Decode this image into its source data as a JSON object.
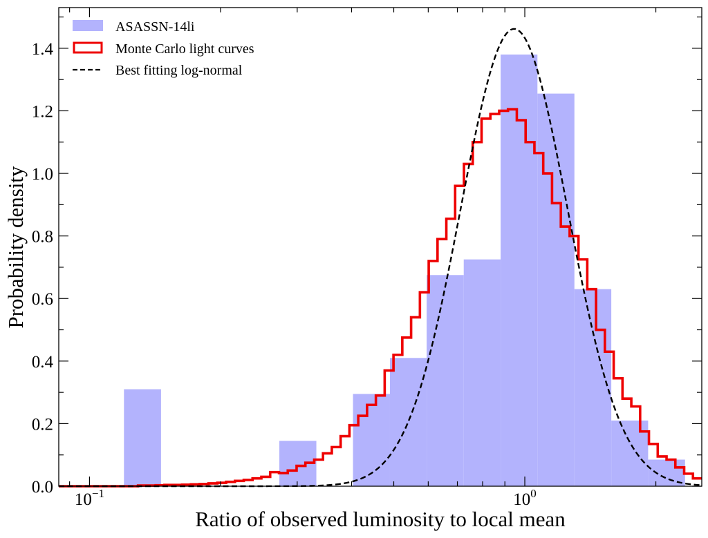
{
  "chart_data": {
    "type": "histogram",
    "xscale": "log",
    "xlim": [
      0.085,
      2.55
    ],
    "ylim": [
      0,
      1.53
    ],
    "xlabel": "Ratio of observed luminosity to local mean",
    "ylabel": "Probability density",
    "x_major_ticks": [
      {
        "value": 0.1,
        "label": "10",
        "exp": "−1"
      },
      {
        "value": 1.0,
        "label": "10",
        "exp": "0"
      }
    ],
    "y_ticks": [
      {
        "value": 0.0,
        "label": "0.0"
      },
      {
        "value": 0.2,
        "label": "0.2"
      },
      {
        "value": 0.4,
        "label": "0.4"
      },
      {
        "value": 0.6,
        "label": "0.6"
      },
      {
        "value": 0.8,
        "label": "0.8"
      },
      {
        "value": 1.0,
        "label": "1.0"
      },
      {
        "value": 1.2,
        "label": "1.2"
      },
      {
        "value": 1.4,
        "label": "1.4"
      }
    ],
    "colors": {
      "hist": "#b3b3fd",
      "mc": "#ee0000",
      "fit": "#000000",
      "axes": "#000000"
    },
    "legend": {
      "position": "upper-left",
      "entries": [
        {
          "name": "hist",
          "label": "ASASSN-14li"
        },
        {
          "name": "mc",
          "label": "Monte Carlo light curves"
        },
        {
          "name": "fit",
          "label": "Best fitting log-normal"
        }
      ]
    },
    "series": [
      {
        "name": "ASASSN-14li",
        "kind": "bar-histogram",
        "bins": [
          {
            "x0": 0.12,
            "x1": 0.146,
            "y": 0.31
          },
          {
            "x0": 0.273,
            "x1": 0.332,
            "y": 0.145
          },
          {
            "x0": 0.403,
            "x1": 0.49,
            "y": 0.295
          },
          {
            "x0": 0.49,
            "x1": 0.595,
            "y": 0.41
          },
          {
            "x0": 0.595,
            "x1": 0.724,
            "y": 0.675
          },
          {
            "x0": 0.724,
            "x1": 0.88,
            "y": 0.725
          },
          {
            "x0": 0.88,
            "x1": 1.069,
            "y": 1.38
          },
          {
            "x0": 1.069,
            "x1": 1.3,
            "y": 1.255
          },
          {
            "x0": 1.3,
            "x1": 1.58,
            "y": 0.63
          },
          {
            "x0": 1.58,
            "x1": 1.92,
            "y": 0.21
          },
          {
            "x0": 1.92,
            "x1": 2.334,
            "y": 0.085
          }
        ]
      },
      {
        "name": "Monte Carlo light curves",
        "kind": "step-histogram",
        "log_start": 0.085,
        "log_end": 2.55,
        "values": [
          0,
          0,
          0,
          0,
          0,
          0,
          0,
          0,
          0,
          0.002,
          0.002,
          0.003,
          0.004,
          0.004,
          0.005,
          0.006,
          0.007,
          0.009,
          0.011,
          0.014,
          0.017,
          0.02,
          0.025,
          0.03,
          0.045,
          0.042,
          0.05,
          0.065,
          0.075,
          0.085,
          0.105,
          0.125,
          0.16,
          0.195,
          0.225,
          0.26,
          0.29,
          0.37,
          0.42,
          0.475,
          0.54,
          0.62,
          0.72,
          0.79,
          0.855,
          0.96,
          1.03,
          1.1,
          1.175,
          1.19,
          1.2,
          1.205,
          1.17,
          1.1,
          1.065,
          1.0,
          0.905,
          0.83,
          0.8,
          0.725,
          0.63,
          0.5,
          0.43,
          0.345,
          0.28,
          0.255,
          0.175,
          0.135,
          0.095,
          0.085,
          0.06,
          0.04,
          0.025
        ]
      },
      {
        "name": "Best fitting log-normal",
        "kind": "lognormal",
        "peak_x": 0.945,
        "peak_y": 1.462,
        "sigma_log10": 0.1228
      }
    ]
  }
}
